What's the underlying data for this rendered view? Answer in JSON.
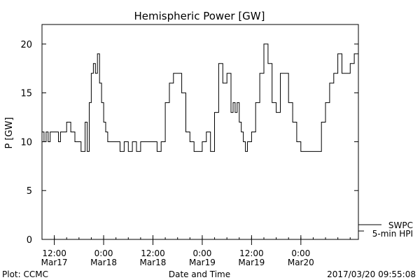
{
  "chart_data": {
    "type": "line",
    "title": "Hemispheric Power [GW]",
    "ylabel": "P [GW]",
    "xlabel": "Date and Time",
    "ylim": [
      0,
      22
    ],
    "xlim": [
      "2017-03-17 09:00",
      "2017-03-20 14:00"
    ],
    "yticks": [
      0,
      5,
      10,
      15,
      20
    ],
    "xticks": [
      {
        "value": "2017-03-17 12:00",
        "label_top": "12:00",
        "label_bottom": "Mar17"
      },
      {
        "value": "2017-03-18 00:00",
        "label_top": "0:00",
        "label_bottom": "Mar18"
      },
      {
        "value": "2017-03-18 12:00",
        "label_top": "12:00",
        "label_bottom": "Mar18"
      },
      {
        "value": "2017-03-19 00:00",
        "label_top": "0:00",
        "label_bottom": "Mar19"
      },
      {
        "value": "2017-03-19 12:00",
        "label_top": "12:00",
        "label_bottom": "Mar19"
      },
      {
        "value": "2017-03-20 00:00",
        "label_top": "0:00",
        "label_bottom": "Mar20"
      }
    ],
    "grid": false,
    "legend_position": "bottom-right",
    "series": [
      {
        "name": "SWPC",
        "label_line2": "5-min HPI",
        "color": "#000000",
        "x": [
          "2017-03-17 09:00",
          "2017-03-17 09:30",
          "2017-03-17 10:00",
          "2017-03-17 10:30",
          "2017-03-17 11:00",
          "2017-03-17 12:00",
          "2017-03-17 13:00",
          "2017-03-17 13:30",
          "2017-03-17 14:00",
          "2017-03-17 15:00",
          "2017-03-17 16:00",
          "2017-03-17 17:00",
          "2017-03-17 18:00",
          "2017-03-17 18:30",
          "2017-03-17 19:00",
          "2017-03-17 19:30",
          "2017-03-17 20:00",
          "2017-03-17 20:30",
          "2017-03-17 21:00",
          "2017-03-17 21:30",
          "2017-03-17 22:00",
          "2017-03-17 22:30",
          "2017-03-17 23:00",
          "2017-03-17 23:30",
          "2017-03-18 00:00",
          "2017-03-18 00:30",
          "2017-03-18 01:00",
          "2017-03-18 01:30",
          "2017-03-18 02:00",
          "2017-03-18 03:00",
          "2017-03-18 04:00",
          "2017-03-18 05:00",
          "2017-03-18 06:00",
          "2017-03-18 07:00",
          "2017-03-18 08:00",
          "2017-03-18 09:00",
          "2017-03-18 10:00",
          "2017-03-18 11:00",
          "2017-03-18 12:00",
          "2017-03-18 13:00",
          "2017-03-18 14:00",
          "2017-03-18 15:00",
          "2017-03-18 16:00",
          "2017-03-18 17:00",
          "2017-03-18 18:00",
          "2017-03-18 19:00",
          "2017-03-18 20:00",
          "2017-03-18 21:00",
          "2017-03-18 22:00",
          "2017-03-18 23:00",
          "2017-03-19 00:00",
          "2017-03-19 01:00",
          "2017-03-19 02:00",
          "2017-03-19 03:00",
          "2017-03-19 04:00",
          "2017-03-19 05:00",
          "2017-03-19 06:00",
          "2017-03-19 07:00",
          "2017-03-19 07:30",
          "2017-03-19 08:00",
          "2017-03-19 08:30",
          "2017-03-19 09:00",
          "2017-03-19 09:30",
          "2017-03-19 10:00",
          "2017-03-19 10:30",
          "2017-03-19 11:00",
          "2017-03-19 12:00",
          "2017-03-19 13:00",
          "2017-03-19 14:00",
          "2017-03-19 15:00",
          "2017-03-19 16:00",
          "2017-03-19 17:00",
          "2017-03-19 18:00",
          "2017-03-19 19:00",
          "2017-03-19 20:00",
          "2017-03-19 21:00",
          "2017-03-19 22:00",
          "2017-03-19 23:00",
          "2017-03-20 00:00",
          "2017-03-20 01:00",
          "2017-03-20 02:00",
          "2017-03-20 03:00",
          "2017-03-20 04:00",
          "2017-03-20 05:00",
          "2017-03-20 06:00",
          "2017-03-20 07:00",
          "2017-03-20 08:00",
          "2017-03-20 09:00",
          "2017-03-20 10:00",
          "2017-03-20 11:00",
          "2017-03-20 12:00",
          "2017-03-20 13:00",
          "2017-03-20 13:30",
          "2017-03-20 14:00"
        ],
        "values": [
          11,
          10,
          11,
          10,
          11,
          11,
          10,
          11,
          11,
          12,
          11,
          10,
          10,
          9,
          9,
          12,
          9,
          14,
          17,
          18,
          17,
          19,
          16,
          14,
          12,
          11,
          10,
          10,
          10,
          10,
          9,
          10,
          9,
          10,
          9,
          10,
          10,
          10,
          10,
          9,
          10,
          14,
          16,
          17,
          17,
          15,
          11,
          10,
          9,
          9,
          10,
          11,
          9,
          13,
          18,
          16,
          17,
          13,
          14,
          13,
          14,
          12,
          11,
          10,
          9,
          10,
          11,
          14,
          17,
          20,
          18,
          14,
          13,
          17,
          17,
          14,
          12,
          10,
          9,
          9,
          9,
          9,
          9,
          12,
          14,
          16,
          17,
          19,
          17,
          17,
          18,
          19,
          19,
          17
        ],
        "notes": ""
      }
    ],
    "footer_left": "Plot: CCMC",
    "footer_right": "2017/03/20 09:55:08"
  }
}
